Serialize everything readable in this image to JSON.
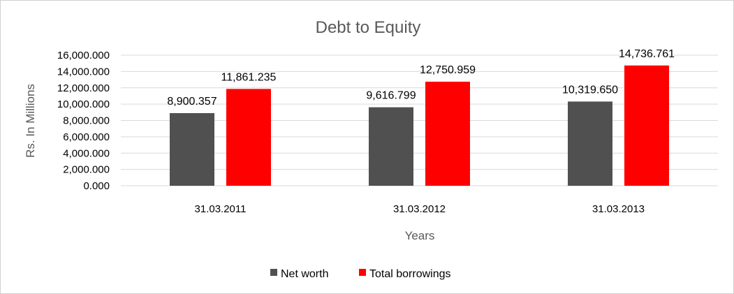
{
  "chart_data": {
    "type": "bar",
    "title": "Debt to Equity",
    "xlabel": "Years",
    "ylabel": "Rs. In Millions",
    "categories": [
      "31.03.2011",
      "31.03.2012",
      "31.03.2013"
    ],
    "series": [
      {
        "name": "Net worth",
        "color": "#505050",
        "values": [
          8900.357,
          9616.799,
          10319.65
        ],
        "labels": [
          "8,900.357",
          "9,616.799",
          "10,319.650"
        ]
      },
      {
        "name": "Total borrowings",
        "color": "#ff0000",
        "values": [
          11861.235,
          12750.959,
          14736.761
        ],
        "labels": [
          "11,861.235",
          "12,750.959",
          "14,736.761"
        ]
      }
    ],
    "ylim": [
      0,
      16000
    ],
    "yticks": [
      0,
      2000,
      4000,
      6000,
      8000,
      10000,
      12000,
      14000,
      16000
    ],
    "ytick_labels": [
      "0.000",
      "2,000.000",
      "4,000.000",
      "6,000.000",
      "8,000.000",
      "10,000.000",
      "12,000.000",
      "14,000.000",
      "16,000.000"
    ],
    "grid": true,
    "legend_position": "bottom"
  }
}
